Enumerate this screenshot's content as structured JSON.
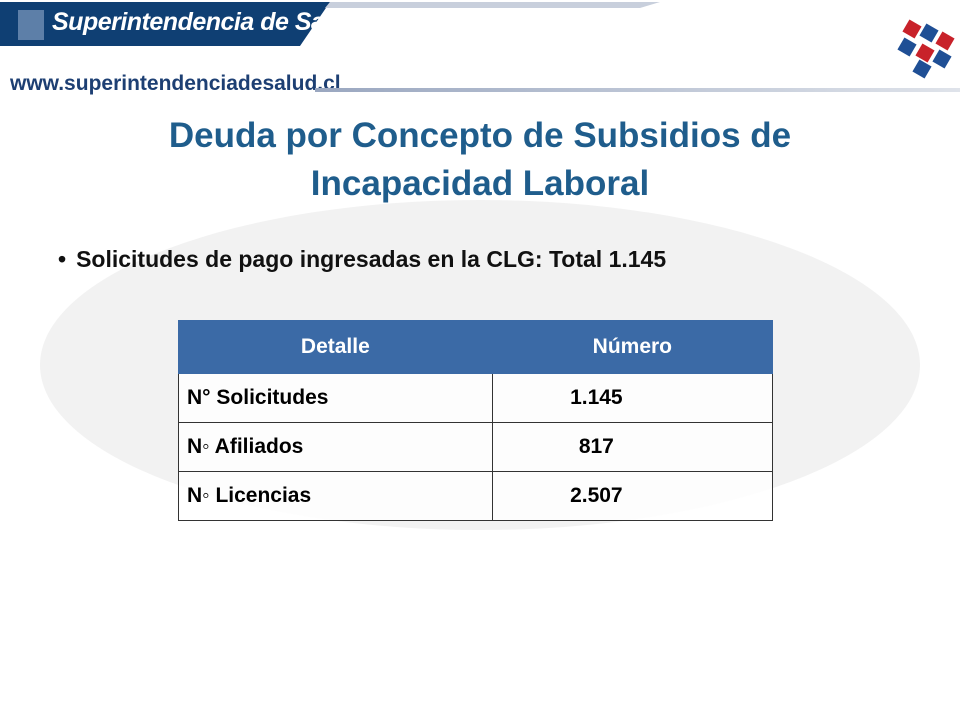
{
  "header": {
    "brand": "Superintendencia de Salud",
    "url": "www.superintendenciadesalud.cl"
  },
  "title": "Deuda por Concepto de Subsidios de Incapacidad Laboral",
  "bullet": "Solicitudes de pago ingresadas en la CLG: Total 1.145",
  "table": {
    "columns": [
      "Detalle",
      "Número"
    ],
    "rows": [
      [
        "N° Solicitudes",
        "1.145"
      ],
      [
        "N◦ Afiliados",
        "817"
      ],
      [
        "N◦ Licencias",
        "2.507"
      ]
    ]
  }
}
